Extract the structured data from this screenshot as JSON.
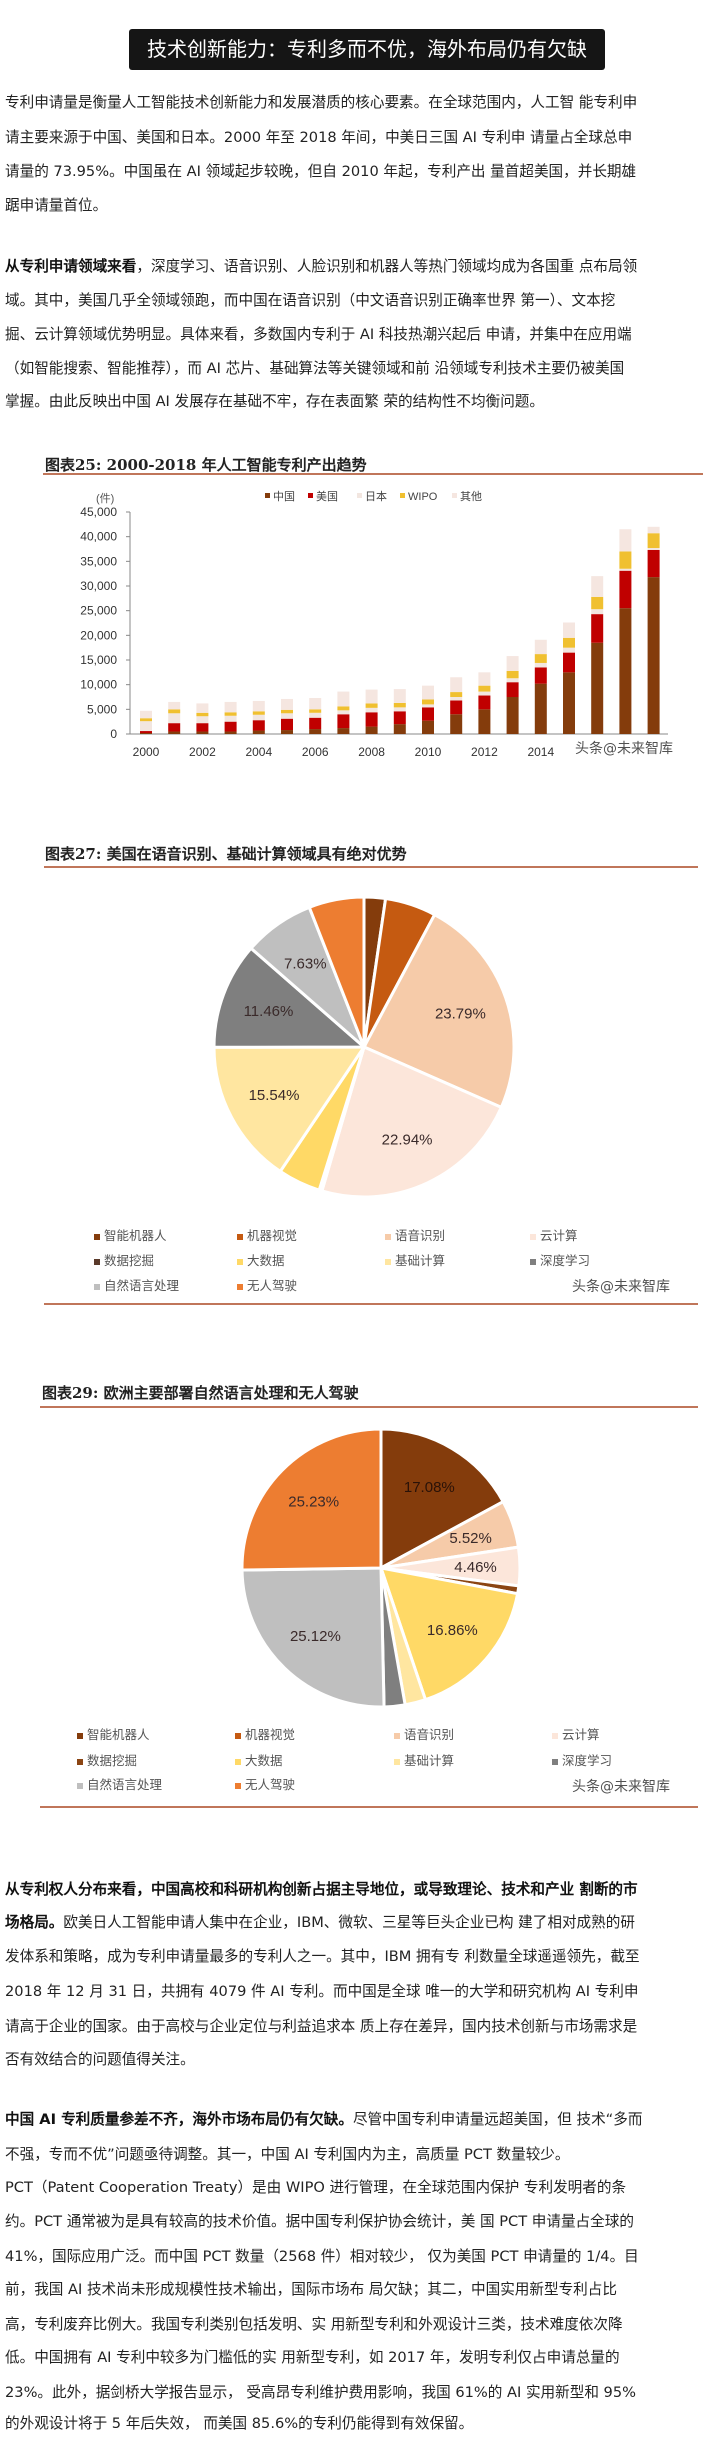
{
  "header": {
    "title": "技术创新能力：专利多而不优，海外布局仍有欠缺"
  },
  "paragraphs": [
    {
      "lines": [
        {
          "text": "专利申请量是衡量人工智能技术创新能力和发展潜质的核心要素。在全球范围内，人工智 能专利申"
        },
        {
          "text": "请主要来源于中国、美国和日本。2000 年至 2018 年间，中美日三国 AI 专利申 请量占全球总申"
        },
        {
          "text": "请量的 73.95%。中国虽在 AI 领域起步较晚，但自 2010 年起，专利产出 量首超美国，并长期雄"
        },
        {
          "text": "踞申请量首位。"
        }
      ]
    },
    {
      "lines": [
        {
          "bold": "从专利申请领域来看",
          "text": "，深度学习、语音识别、人脸识别和机器人等热门领域均成为各国重 点布局领"
        },
        {
          "text": "域。其中，美国几乎全领域领跑，而中国在语音识别（中文语音识别正确率世界 第一）、文本挖"
        },
        {
          "text": "掘、云计算领域优势明显。具体来看，多数国内专利于 AI 科技热潮兴起后 申请，并集中在应用端"
        },
        {
          "text": "（如智能搜索、智能推荐），而 AI 芯片、基础算法等关键领域和前 沿领域专利技术主要仍被美国"
        },
        {
          "text": "掌握。由此反映出中国 AI 发展存在基础不牢，存在表面繁 荣的结构性不均衡问题。"
        }
      ]
    },
    {
      "lines": [
        {
          "bold": "从专利权人分布来看，中国高校和科研机构创新占据主导地位，或导致理论、技术和产业 割断的市"
        },
        {
          "bold": "场格局。",
          "text": "欧美日人工智能申请人集中在企业，IBM、微软、三星等巨头企业已构 建了相对成熟的研"
        },
        {
          "text": "发体系和策略，成为专利申请量最多的专利人之一。其中，IBM 拥有专 利数量全球遥遥领先，截至"
        },
        {
          "text": "2018 年 12 月 31 日，共拥有 4079 件 AI 专利。而中国是全球 唯一的大学和研究机构 AI 专利申"
        },
        {
          "text": "请高于企业的国家。由于高校与企业定位与利益追求本 质上存在差异，国内技术创新与市场需求是"
        },
        {
          "text": "否有效结合的问题值得关注。"
        }
      ]
    },
    {
      "lines": [
        {
          "bold": "中国 AI 专利质量参差不齐，海外市场布局仍有欠缺。",
          "text": "尽管中国专利申请量远超美国，但 技术“多而"
        },
        {
          "text": "不强，专而不优”问题亟待调整。其一，中国 AI 专利国内为主，高质量 PCT 数量较少。"
        },
        {
          "text": "PCT（Patent Cooperation Treaty）是由 WIPO 进行管理，在全球范围内保护 专利发明者的条"
        },
        {
          "text": "约。PCT 通常被为是具有较高的技术价值。据中国专利保护协会统计，美 国 PCT 申请量占全球的"
        },
        {
          "text": "41%，国际应用广泛。而中国 PCT 数量（2568 件）相对较少， 仅为美国 PCT 申请量的 1/4。目"
        },
        {
          "text": "前，我国 AI 技术尚未形成规模性技术输出，国际市场布 局欠缺；其二，中国实用新型专利占比"
        },
        {
          "text": "高，专利废弃比例大。我国专利类别包括发明、实 用新型专利和外观设计三类，技术难度依次降"
        },
        {
          "text": "低。中国拥有 AI 专利中较多为门槛低的实 用新型专利，如 2017 年，发明专利仅占申请总量的"
        },
        {
          "text": "23%。此外，据剑桥大学报告显示， 受高昂专利维护费用影响，我国 61%的 AI 实用新型和 95%"
        },
        {
          "text": "的外观设计将于 5 年后失效， 而美国 85.6%的专利仍能得到有效保留。"
        }
      ]
    }
  ],
  "watermark": "头条@未来智库",
  "chart_data": [
    {
      "type": "bar",
      "stacked": true,
      "title": "图表25:   2000-2018 年人工智能专利产出趋势",
      "ylabel": "(件)",
      "ylim": [
        0,
        45000
      ],
      "yticks": [
        "0",
        "5,000",
        "10,000",
        "15,000",
        "20,000",
        "25,000",
        "30,000",
        "35,000",
        "40,000",
        "45,000"
      ],
      "ytick_values": [
        0,
        5000,
        10000,
        15000,
        20000,
        25000,
        30000,
        35000,
        40000,
        45000
      ],
      "categories": [
        "2000",
        "2001",
        "2002",
        "2003",
        "2004",
        "2005",
        "2006",
        "2007",
        "2008",
        "2009",
        "2010",
        "2011",
        "2012",
        "2013",
        "2014",
        "2015",
        "2016",
        "2017",
        "2018"
      ],
      "xtick_labels": [
        "2000",
        "2002",
        "2004",
        "2006",
        "2008",
        "2010",
        "2012",
        "2014"
      ],
      "legend_position": "top",
      "series": [
        {
          "name": "中国",
          "color": "#843C0C",
          "values": [
            200,
            500,
            500,
            500,
            700,
            800,
            1000,
            1200,
            1500,
            2000,
            2700,
            4000,
            5000,
            7500,
            10200,
            12500,
            18500,
            25500,
            31800
          ]
        },
        {
          "name": "美国",
          "color": "#C00000",
          "values": [
            400,
            1700,
            1700,
            2000,
            2100,
            2300,
            2300,
            2800,
            2900,
            2600,
            2700,
            2800,
            2800,
            3000,
            3300,
            4000,
            5800,
            7600,
            5500
          ]
        },
        {
          "name": "日本",
          "color": "#F2E6E0",
          "values": [
            2000,
            2000,
            1400,
            1200,
            1100,
            1100,
            1000,
            800,
            900,
            800,
            600,
            700,
            800,
            800,
            900,
            1000,
            1000,
            400,
            400
          ]
        },
        {
          "name": "WIPO",
          "color": "#F0C030",
          "values": [
            600,
            800,
            700,
            700,
            700,
            700,
            700,
            800,
            900,
            900,
            1000,
            1000,
            1200,
            1500,
            1800,
            2000,
            2500,
            3500,
            3000
          ]
        },
        {
          "name": "其他",
          "color": "#F5E6E0",
          "values": [
            1500,
            1500,
            1900,
            2100,
            2100,
            2200,
            2300,
            3000,
            2800,
            2800,
            2800,
            3000,
            2700,
            3000,
            2900,
            3100,
            4200,
            4500,
            1300
          ]
        }
      ]
    },
    {
      "type": "pie",
      "title": "图表27:   美国在语音识别、基础计算领域具有绝对优势",
      "legend_position": "bottom",
      "slices": [
        {
          "name": "智能机器人",
          "value": 2.3,
          "color": "#843C0C"
        },
        {
          "name": "机器视觉",
          "value": 5.5,
          "color": "#C55A11"
        },
        {
          "name": "语音识别",
          "value": 23.79,
          "label": "23.79%",
          "color": "#F6CBA9"
        },
        {
          "name": "云计算",
          "value": 22.94,
          "label": "22.94%",
          "color": "#FCE6DA"
        },
        {
          "name": "数据挖掘",
          "value": 0.3,
          "color": "#5A3A2A"
        },
        {
          "name": "大数据",
          "value": 4.6,
          "color": "#FFD966"
        },
        {
          "name": "基础计算",
          "value": 15.54,
          "label": "15.54%",
          "color": "#FFE6A0"
        },
        {
          "name": "深度学习",
          "value": 11.46,
          "label": "11.46%",
          "color": "#7F7F7F"
        },
        {
          "name": "自然语言处理",
          "value": 7.63,
          "label": "7.63%",
          "color": "#BFBFBF"
        },
        {
          "name": "无人驾驶",
          "value": 5.94,
          "color": "#ED7D31"
        }
      ]
    },
    {
      "type": "pie",
      "title": "图表29:   欧洲主要部署自然语言处理和无人驾驶",
      "legend_position": "bottom",
      "slices": [
        {
          "name": "智能机器人",
          "value": 17.08,
          "label": "17.08%",
          "color": "#843C0C"
        },
        {
          "name": "机器视觉",
          "value": 0,
          "color": "#C55A11"
        },
        {
          "name": "语音识别",
          "value": 5.52,
          "label": "5.52%",
          "color": "#F6CBA9"
        },
        {
          "name": "云计算",
          "value": 4.46,
          "label": "4.46%",
          "color": "#FCE6DA"
        },
        {
          "name": "数据挖掘",
          "value": 0.9,
          "color": "#8B4513"
        },
        {
          "name": "大数据",
          "value": 16.86,
          "label": "16.86%",
          "color": "#FFD966"
        },
        {
          "name": "基础计算",
          "value": 2.4,
          "color": "#FFE6A0"
        },
        {
          "name": "深度学习",
          "value": 2.43,
          "color": "#7F7F7F"
        },
        {
          "name": "自然语言处理",
          "value": 25.12,
          "label": "25.12%",
          "color": "#BFBFBF"
        },
        {
          "name": "无人驾驶",
          "value": 25.23,
          "label": "25.23%",
          "color": "#ED7D31"
        }
      ]
    }
  ]
}
